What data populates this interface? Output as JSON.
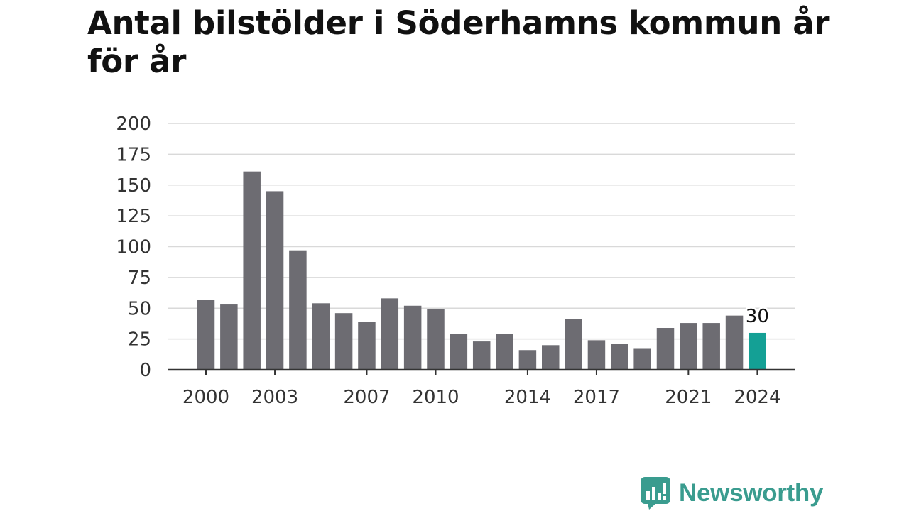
{
  "title": "Antal bilstölder i Söderhamns kommun år för år",
  "logo_text": "Newsworthy",
  "colors": {
    "bar": "#6d6c72",
    "highlight": "#14a095",
    "grid": "#d9d9d9",
    "axis": "#333333",
    "brand": "#3a9c8f"
  },
  "chart_data": {
    "type": "bar",
    "title": "Antal bilstölder i Söderhamns kommun år för år",
    "xlabel": "",
    "ylabel": "",
    "x": [
      2000,
      2001,
      2002,
      2003,
      2004,
      2005,
      2006,
      2007,
      2008,
      2009,
      2010,
      2011,
      2012,
      2013,
      2014,
      2015,
      2016,
      2017,
      2018,
      2019,
      2020,
      2021,
      2022,
      2023,
      2024
    ],
    "values": [
      57,
      53,
      161,
      145,
      97,
      54,
      46,
      39,
      58,
      52,
      49,
      29,
      23,
      29,
      16,
      20,
      41,
      24,
      21,
      17,
      34,
      38,
      38,
      44,
      30
    ],
    "x_tick_labels": [
      "2000",
      "2003",
      "2007",
      "2010",
      "2014",
      "2017",
      "2021",
      "2024"
    ],
    "yticks": [
      0,
      25,
      50,
      75,
      100,
      125,
      150,
      175,
      200
    ],
    "ylim": [
      0,
      200
    ],
    "grid": true,
    "highlight_year": 2024,
    "highlight_label": "30"
  }
}
